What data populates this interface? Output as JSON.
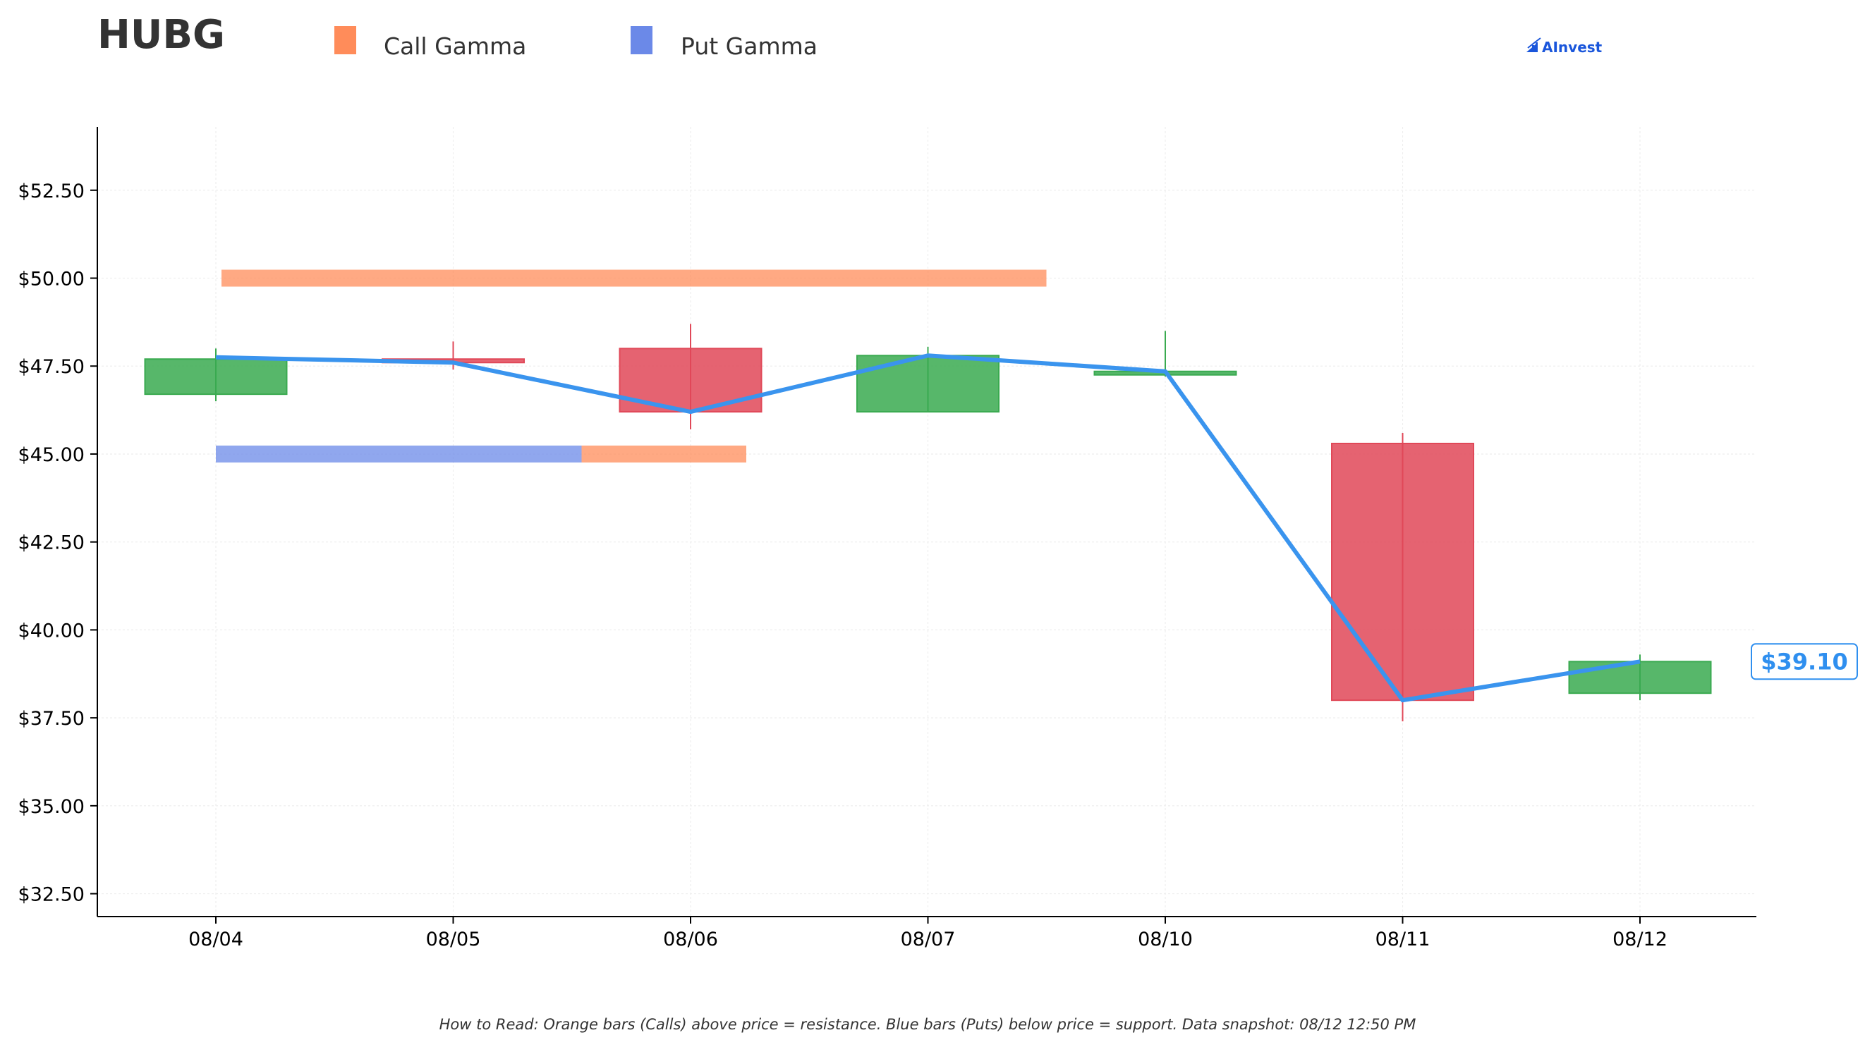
{
  "header": {
    "ticker": "HUBG",
    "brand": "AInvest"
  },
  "legend": [
    {
      "label": "Call Gamma",
      "color": "#ff8c5a"
    },
    {
      "label": "Put Gamma",
      "color": "#6b89e8"
    }
  ],
  "current_price_label": "$39.10",
  "footnote": "How to Read: Orange bars (Calls) above price = resistance. Blue bars (Puts) below price = support. Data snapshot: 08/12 12:50 PM",
  "colors": {
    "up": "#3aaa50",
    "down": "#e04858",
    "price_line": "#3a94ee",
    "call": "#ff8c5a",
    "put": "#6b89e8",
    "grid": "#eeeeee",
    "axis": "#000000"
  },
  "chart_data": {
    "type": "candlestick",
    "title": "HUBG",
    "ylim": [
      31.85,
      54.3
    ],
    "yticks": [
      32.5,
      35.0,
      37.5,
      40.0,
      42.5,
      45.0,
      47.5,
      50.0,
      52.5
    ],
    "ytick_labels": [
      "$32.50",
      "$35.00",
      "$37.50",
      "$40.00",
      "$42.50",
      "$45.00",
      "$47.50",
      "$50.00",
      "$52.50"
    ],
    "categories": [
      "08/04",
      "08/05",
      "08/06",
      "08/07",
      "08/10",
      "08/11",
      "08/12"
    ],
    "candles": [
      {
        "date": "08/04",
        "open": 46.7,
        "high": 48.0,
        "low": 46.5,
        "close": 47.7
      },
      {
        "date": "08/05",
        "open": 47.7,
        "high": 48.2,
        "low": 47.4,
        "close": 47.6
      },
      {
        "date": "08/06",
        "open": 48.0,
        "high": 48.7,
        "low": 45.7,
        "close": 46.2
      },
      {
        "date": "08/07",
        "open": 46.2,
        "high": 48.05,
        "low": 46.2,
        "close": 47.8
      },
      {
        "date": "08/10",
        "open": 47.25,
        "high": 48.5,
        "low": 47.2,
        "close": 47.35
      },
      {
        "date": "08/11",
        "open": 45.3,
        "high": 45.6,
        "low": 37.4,
        "close": 38.0
      },
      {
        "date": "08/12",
        "open": 38.2,
        "high": 39.3,
        "low": 38.0,
        "close": 39.1
      }
    ],
    "price_line": [
      47.75,
      47.6,
      46.2,
      47.8,
      47.35,
      38.0,
      39.1
    ],
    "gamma_bars": [
      {
        "type": "call",
        "strike": 50.0,
        "from": "08/04",
        "to": "08/07"
      },
      {
        "type": "put",
        "strike": 45.0,
        "from": "08/04",
        "to": "08/05"
      },
      {
        "type": "call",
        "strike": 45.0,
        "from": "08/05",
        "to": "08/06"
      }
    ],
    "grid": true,
    "legend_position": "top"
  }
}
